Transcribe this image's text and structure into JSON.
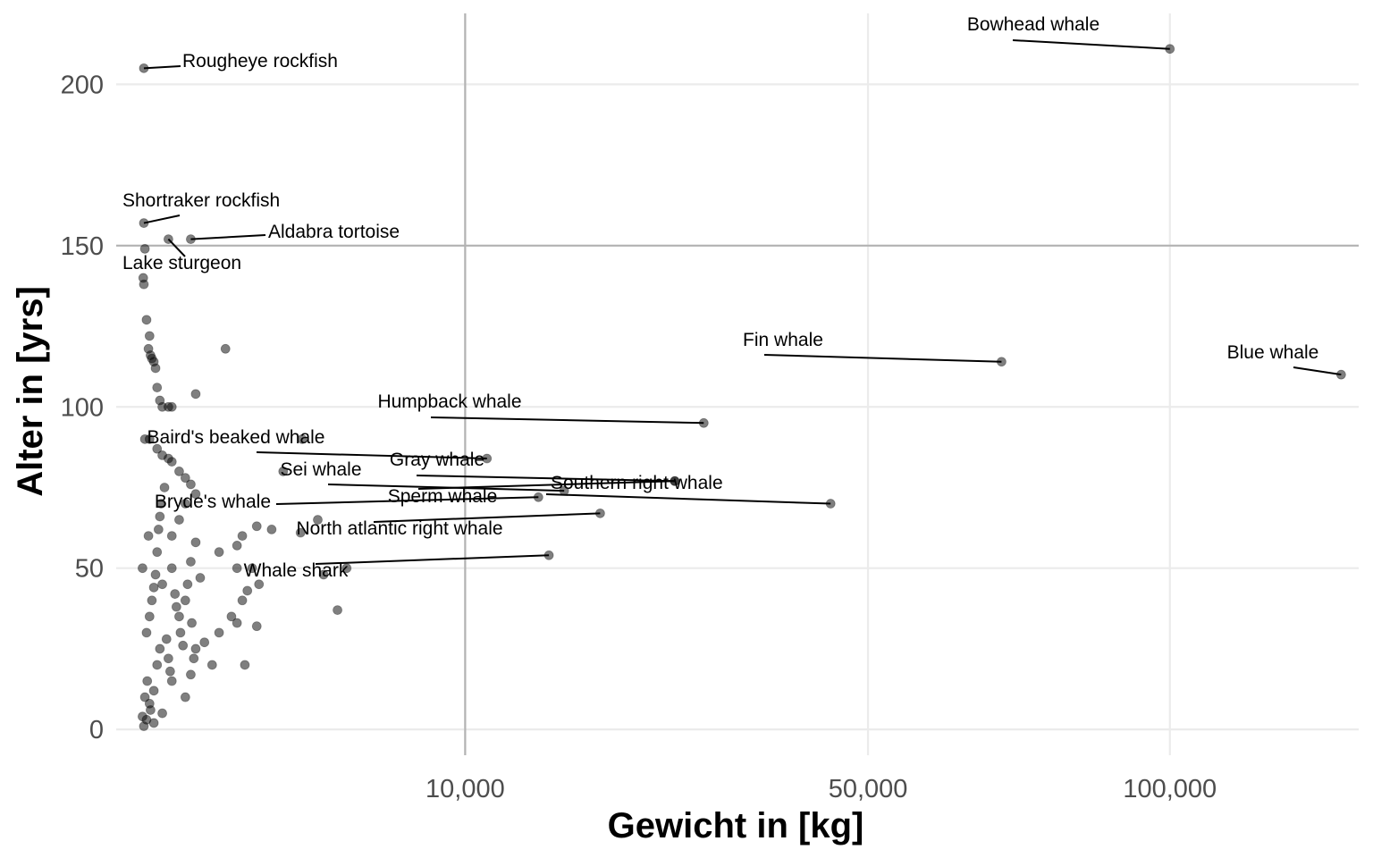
{
  "chart_data": {
    "type": "scatter",
    "xlabel": "Gewicht in [kg]",
    "ylabel": "Alter in [yrs]",
    "x_scale": "sqrt",
    "xlim": [
      -50,
      140000
    ],
    "ylim": [
      -8,
      222
    ],
    "x_ticks": [
      10000,
      50000,
      100000
    ],
    "x_tick_labels": [
      "10,000",
      "50,000",
      "100,000"
    ],
    "y_ticks": [
      0,
      50,
      100,
      150,
      200
    ],
    "y_tick_labels": [
      "0",
      "50",
      "100",
      "150",
      "200"
    ],
    "grid": true,
    "highlight_lines": {
      "x": 10000,
      "y": 150
    },
    "point_color": "#000000",
    "point_opacity": 0.5,
    "label_color": "#000000",
    "labeled_points": [
      {
        "name": "Bowhead whale",
        "x": 100000,
        "y": 211
      },
      {
        "name": "Rougheye rockfish",
        "x": 2,
        "y": 205
      },
      {
        "name": "Shortraker rockfish",
        "x": 2,
        "y": 157
      },
      {
        "name": "Aldabra tortoise",
        "x": 250,
        "y": 152
      },
      {
        "name": "Lake sturgeon",
        "x": 80,
        "y": 152
      },
      {
        "name": "Fin whale",
        "x": 70000,
        "y": 114
      },
      {
        "name": "Blue whale",
        "x": 136000,
        "y": 110
      },
      {
        "name": "Humpback whale",
        "x": 30000,
        "y": 95
      },
      {
        "name": "Baird's beaked whale",
        "x": 11380,
        "y": 84
      },
      {
        "name": "Gray whale",
        "x": 27000,
        "y": 77
      },
      {
        "name": "Sei whale",
        "x": 17000,
        "y": 74
      },
      {
        "name": "Bryde's whale",
        "x": 15000,
        "y": 72
      },
      {
        "name": "Southern right whale",
        "x": 45000,
        "y": 70
      },
      {
        "name": "Sperm whale",
        "x": 27000,
        "y": 77
      },
      {
        "name": "North atlantic right whale",
        "x": 20000,
        "y": 67
      },
      {
        "name": "Whale shark",
        "x": 15800,
        "y": 54
      }
    ],
    "points": [
      {
        "x": 1.5,
        "y": 140
      },
      {
        "x": 2,
        "y": 138
      },
      {
        "x": 3,
        "y": 149
      },
      {
        "x": 5,
        "y": 127
      },
      {
        "x": 10,
        "y": 122
      },
      {
        "x": 8,
        "y": 118
      },
      {
        "x": 12,
        "y": 116
      },
      {
        "x": 15,
        "y": 115
      },
      {
        "x": 20,
        "y": 114
      },
      {
        "x": 25,
        "y": 112
      },
      {
        "x": 30,
        "y": 106
      },
      {
        "x": 300,
        "y": 104
      },
      {
        "x": 40,
        "y": 102
      },
      {
        "x": 50,
        "y": 100
      },
      {
        "x": 80,
        "y": 100
      },
      {
        "x": 100,
        "y": 100
      },
      {
        "x": 700,
        "y": 118
      },
      {
        "x": 3,
        "y": 90
      },
      {
        "x": 10,
        "y": 90
      },
      {
        "x": 30,
        "y": 87
      },
      {
        "x": 50,
        "y": 85
      },
      {
        "x": 80,
        "y": 84
      },
      {
        "x": 100,
        "y": 83
      },
      {
        "x": 150,
        "y": 80
      },
      {
        "x": 200,
        "y": 78
      },
      {
        "x": 250,
        "y": 76
      },
      {
        "x": 300,
        "y": 73
      },
      {
        "x": 2500,
        "y": 90
      },
      {
        "x": 1950,
        "y": 80
      },
      {
        "x": 3000,
        "y": 65
      },
      {
        "x": 1650,
        "y": 62
      },
      {
        "x": 2450,
        "y": 61
      },
      {
        "x": 1300,
        "y": 63
      },
      {
        "x": 1000,
        "y": 60
      },
      {
        "x": 900,
        "y": 57
      },
      {
        "x": 600,
        "y": 55
      },
      {
        "x": 4050,
        "y": 50
      },
      {
        "x": 3200,
        "y": 48
      },
      {
        "x": 3700,
        "y": 37
      },
      {
        "x": 1200,
        "y": 50
      },
      {
        "x": 900,
        "y": 50
      },
      {
        "x": 1350,
        "y": 45
      },
      {
        "x": 1100,
        "y": 43
      },
      {
        "x": 1000,
        "y": 40
      },
      {
        "x": 800,
        "y": 35
      },
      {
        "x": 1300,
        "y": 32
      },
      {
        "x": 900,
        "y": 33
      },
      {
        "x": 600,
        "y": 30
      },
      {
        "x": 1050,
        "y": 20
      },
      {
        "x": 500,
        "y": 20
      },
      {
        "x": 400,
        "y": 27
      },
      {
        "x": 200,
        "y": 70
      },
      {
        "x": 150,
        "y": 65
      },
      {
        "x": 100,
        "y": 60
      },
      {
        "x": 300,
        "y": 58
      },
      {
        "x": 250,
        "y": 52
      },
      {
        "x": 100,
        "y": 50
      },
      {
        "x": 50,
        "y": 45
      },
      {
        "x": 200,
        "y": 40
      },
      {
        "x": 150,
        "y": 35
      },
      {
        "x": 300,
        "y": 25
      },
      {
        "x": 250,
        "y": 17
      },
      {
        "x": 100,
        "y": 15
      },
      {
        "x": 200,
        "y": 10
      },
      {
        "x": 50,
        "y": 5
      },
      {
        "x": 20,
        "y": 2
      },
      {
        "x": 2,
        "y": 1
      },
      {
        "x": 5,
        "y": 3
      },
      {
        "x": 10,
        "y": 8
      },
      {
        "x": 20,
        "y": 12
      },
      {
        "x": 30,
        "y": 20
      },
      {
        "x": 40,
        "y": 25
      },
      {
        "x": 5,
        "y": 30
      },
      {
        "x": 10,
        "y": 35
      },
      {
        "x": 15,
        "y": 40
      },
      {
        "x": 20,
        "y": 44
      },
      {
        "x": 25,
        "y": 48
      },
      {
        "x": 30,
        "y": 55
      },
      {
        "x": 35,
        "y": 62
      },
      {
        "x": 40,
        "y": 66
      },
      {
        "x": 45,
        "y": 70
      },
      {
        "x": 60,
        "y": 75
      },
      {
        "x": 70,
        "y": 28
      },
      {
        "x": 80,
        "y": 22
      },
      {
        "x": 90,
        "y": 18
      },
      {
        "x": 120,
        "y": 42
      },
      {
        "x": 130,
        "y": 38
      },
      {
        "x": 160,
        "y": 30
      },
      {
        "x": 180,
        "y": 26
      },
      {
        "x": 220,
        "y": 45
      },
      {
        "x": 260,
        "y": 33
      },
      {
        "x": 280,
        "y": 22
      },
      {
        "x": 350,
        "y": 47
      },
      {
        "x": 8,
        "y": 60
      },
      {
        "x": 12,
        "y": 6
      },
      {
        "x": 6,
        "y": 15
      },
      {
        "x": 3,
        "y": 10
      },
      {
        "x": 1,
        "y": 4
      },
      {
        "x": 1,
        "y": 50
      }
    ]
  }
}
